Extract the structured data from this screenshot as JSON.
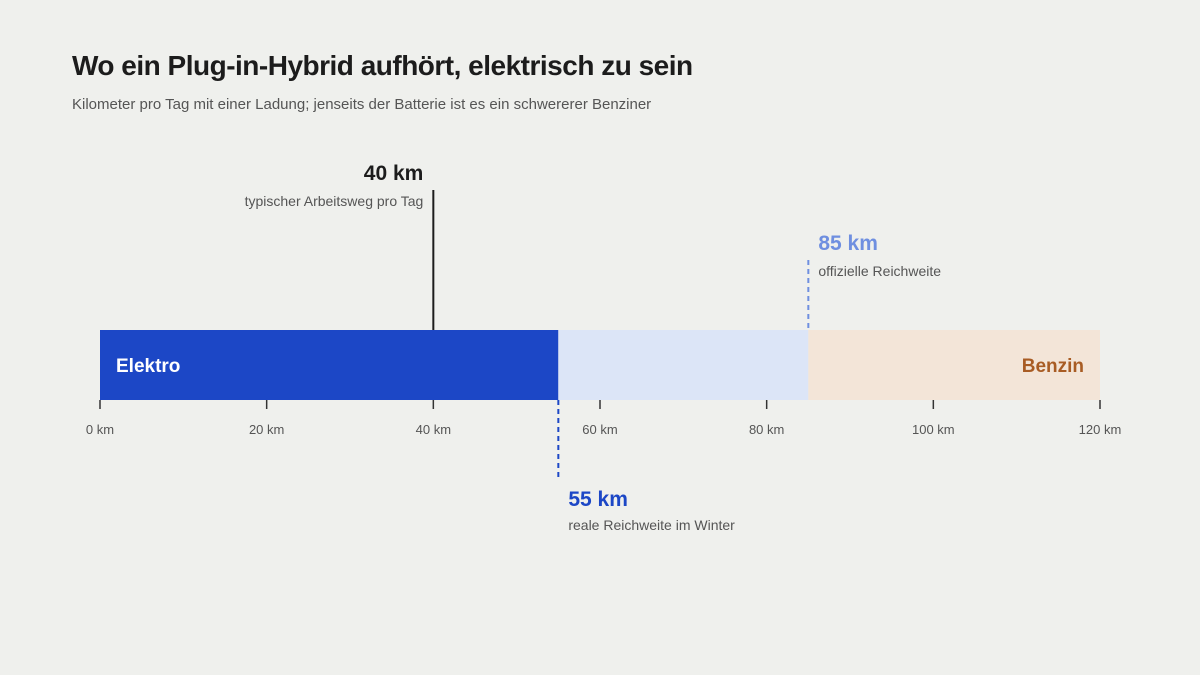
{
  "title": "Wo ein Plug-in-Hybrid aufhört, elektrisch zu sein",
  "subtitle": "Kilometer pro Tag mit einer Ladung; jenseits der Batterie ist es ein schwererer Benziner",
  "chart_data": {
    "type": "bar",
    "orientation": "horizontal",
    "xlim": [
      0,
      120
    ],
    "unit": "km",
    "ticks": [
      {
        "value": 0,
        "label": "0 km"
      },
      {
        "value": 20,
        "label": "20 km"
      },
      {
        "value": 40,
        "label": "40 km"
      },
      {
        "value": 60,
        "label": "60 km"
      },
      {
        "value": 80,
        "label": "80 km"
      },
      {
        "value": 100,
        "label": "100 km"
      },
      {
        "value": 120,
        "label": "120 km"
      }
    ],
    "segments": [
      {
        "from": 0,
        "to": 55,
        "label": "Elektro",
        "color": "#1c47c6",
        "text_color": "#ffffff",
        "align": "start"
      },
      {
        "from": 55,
        "to": 85,
        "label": "",
        "color": "#dce5f7",
        "text_color": "#1c47c6",
        "align": "start"
      },
      {
        "from": 85,
        "to": 120,
        "label": "Benzin",
        "color": "#f3e5d8",
        "text_color": "#a85c24",
        "align": "end"
      }
    ],
    "markers": [
      {
        "value": 40,
        "value_label": "40 km",
        "description": "typischer Arbeitsweg pro Tag",
        "position": "above",
        "side": "left",
        "style": "solid",
        "color": "#1c1c1c"
      },
      {
        "value": 85,
        "value_label": "85 km",
        "description": "offizielle Reichweite",
        "position": "above",
        "side": "right",
        "style": "dashed",
        "color": "#6f8fe0"
      },
      {
        "value": 55,
        "value_label": "55 km",
        "description": "reale Reichweite im Winter",
        "position": "below",
        "side": "right",
        "style": "dashed",
        "color": "#1c47c6"
      }
    ]
  }
}
